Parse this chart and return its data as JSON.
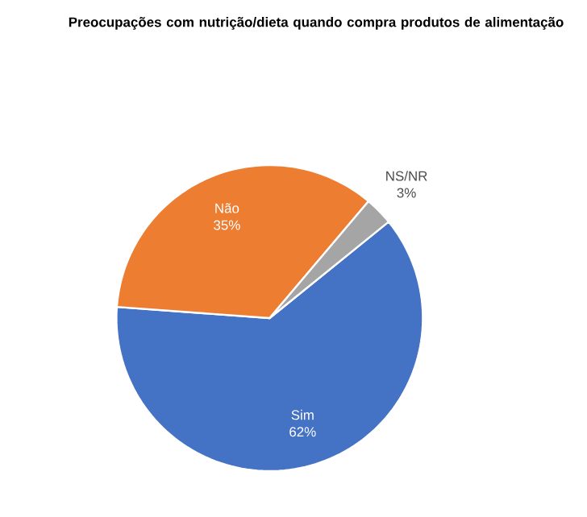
{
  "chart_data": {
    "type": "pie",
    "title": "Preocupações com nutrição/dieta quando compra produtos de alimentação",
    "categories": [
      "Sim",
      "Não",
      "NS/NR"
    ],
    "values": [
      62,
      35,
      3
    ],
    "value_labels": [
      "62%",
      "35%",
      "3%"
    ],
    "colors": [
      "#4472c4",
      "#ed7d31",
      "#a5a5a5"
    ]
  }
}
